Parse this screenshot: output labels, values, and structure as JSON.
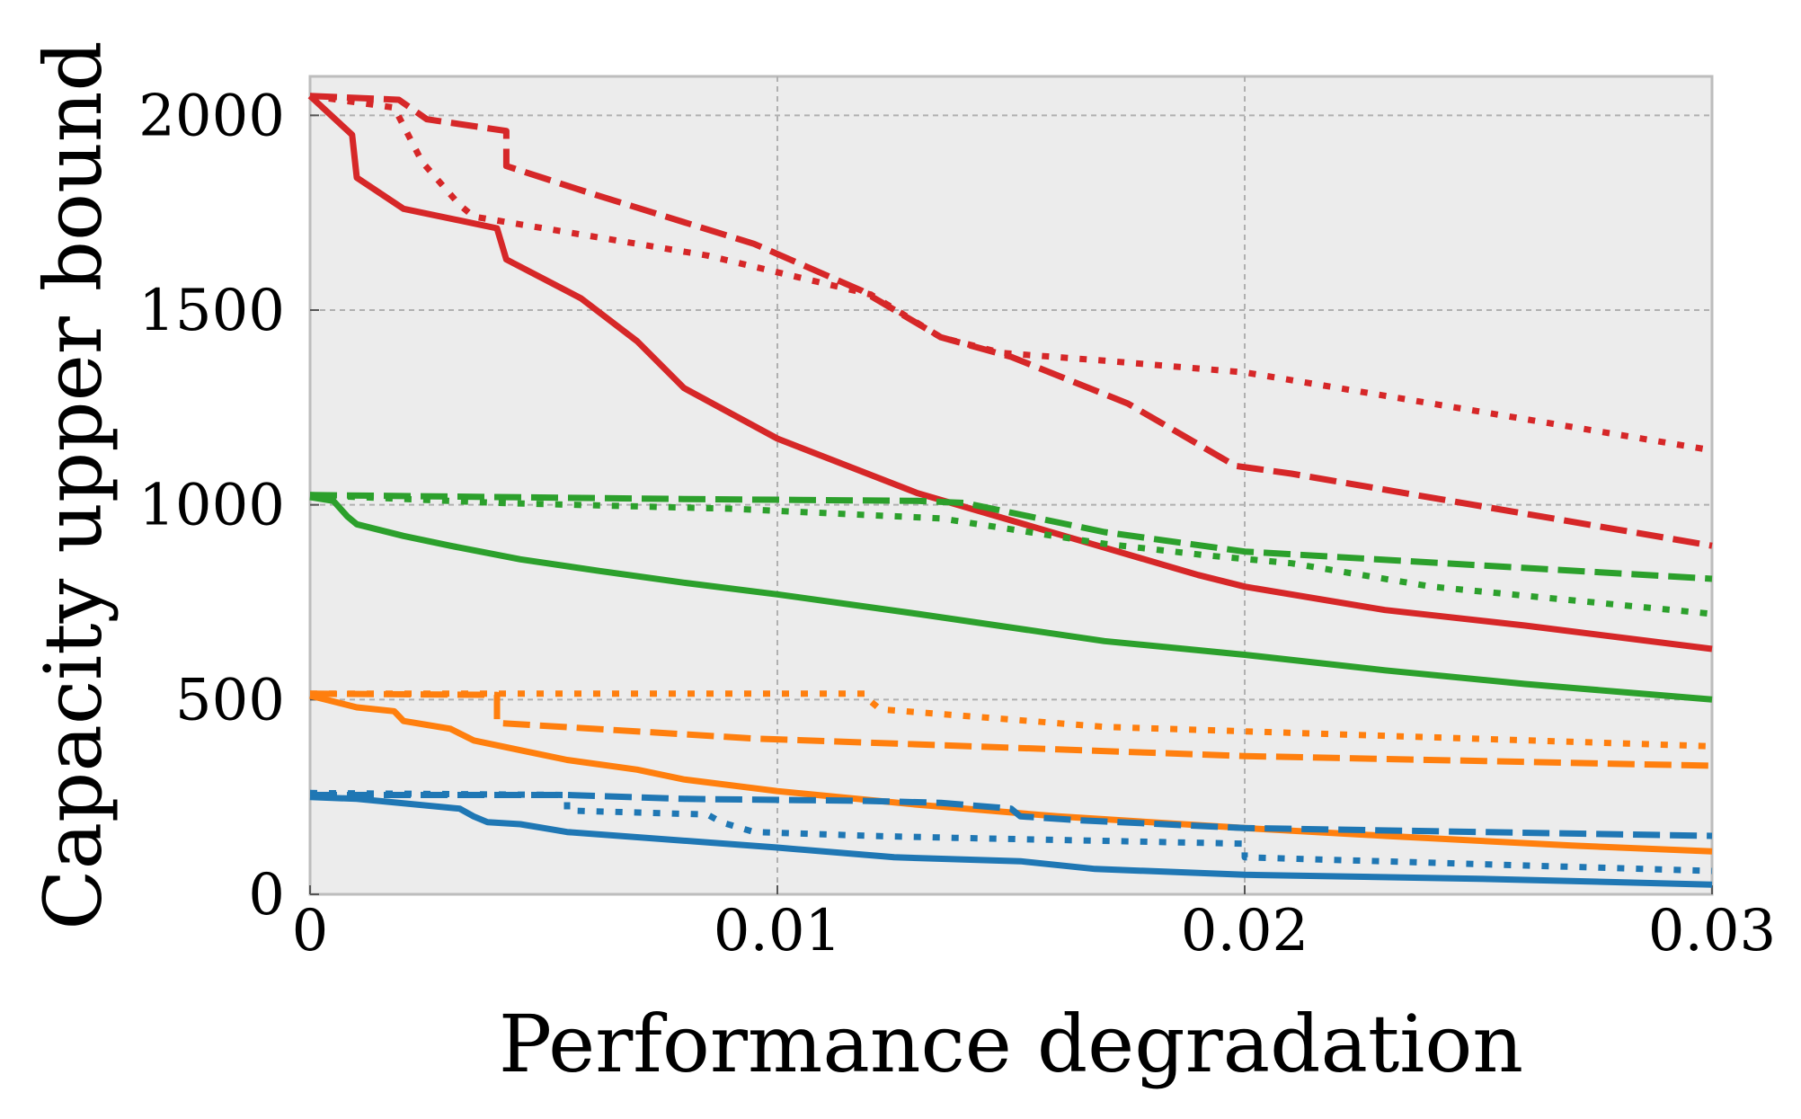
{
  "chart_data": {
    "type": "line",
    "title": "",
    "xlabel": "Performance degradation",
    "ylabel": "Capacity upper bound",
    "xlim": [
      0,
      0.03
    ],
    "ylim": [
      0,
      2100
    ],
    "grid": true,
    "xticks": [
      0,
      0.01,
      0.02,
      0.03
    ],
    "xtick_labels": [
      "0",
      "0.01",
      "0.02",
      "0.03"
    ],
    "yticks": [
      0,
      500,
      1000,
      1500,
      2000
    ],
    "ytick_labels": [
      "0",
      "500",
      "1000",
      "1500",
      "2000"
    ],
    "series": [
      {
        "name": "red-solid",
        "color": "#d62728",
        "style": "solid",
        "x": [
          0,
          0.0009,
          0.001,
          0.002,
          0.004,
          0.0042,
          0.0058,
          0.007,
          0.008,
          0.01,
          0.013,
          0.015,
          0.017,
          0.019,
          0.02,
          0.023,
          0.026,
          0.03
        ],
        "y": [
          2050,
          1950,
          1840,
          1760,
          1710,
          1630,
          1530,
          1420,
          1300,
          1170,
          1030,
          960,
          890,
          820,
          790,
          730,
          690,
          630
        ]
      },
      {
        "name": "red-dashed",
        "color": "#d62728",
        "style": "dashed",
        "x": [
          0,
          0.0019,
          0.0025,
          0.0042,
          0.0042,
          0.006,
          0.0095,
          0.0118,
          0.0135,
          0.015,
          0.0175,
          0.0198,
          0.021,
          0.03
        ],
        "y": [
          2050,
          2040,
          1990,
          1960,
          1870,
          1800,
          1670,
          1550,
          1430,
          1380,
          1260,
          1100,
          1080,
          895
        ]
      },
      {
        "name": "red-dotted",
        "color": "#d62728",
        "style": "dotted",
        "x": [
          0,
          0.0018,
          0.0024,
          0.0032,
          0.0035,
          0.0055,
          0.0085,
          0.012,
          0.0135,
          0.0148,
          0.017,
          0.02,
          0.03
        ],
        "y": [
          2050,
          2020,
          1880,
          1770,
          1740,
          1700,
          1640,
          1540,
          1430,
          1390,
          1370,
          1340,
          1140
        ]
      },
      {
        "name": "green-solid",
        "color": "#2ca02c",
        "style": "solid",
        "x": [
          0,
          0.0005,
          0.0008,
          0.001,
          0.002,
          0.003,
          0.0045,
          0.0062,
          0.008,
          0.01,
          0.013,
          0.017,
          0.02,
          0.023,
          0.026,
          0.03
        ],
        "y": [
          1020,
          1010,
          970,
          950,
          920,
          895,
          860,
          830,
          800,
          770,
          720,
          650,
          615,
          575,
          540,
          500
        ]
      },
      {
        "name": "green-dashed",
        "color": "#2ca02c",
        "style": "dashed",
        "x": [
          0,
          0.004,
          0.008,
          0.013,
          0.014,
          0.017,
          0.02,
          0.03
        ],
        "y": [
          1025,
          1020,
          1015,
          1010,
          1005,
          930,
          880,
          810
        ]
      },
      {
        "name": "green-dotted",
        "color": "#2ca02c",
        "style": "dotted",
        "x": [
          0,
          0.004,
          0.009,
          0.0135,
          0.017,
          0.0192,
          0.021,
          0.024,
          0.03
        ],
        "y": [
          1025,
          1005,
          990,
          965,
          900,
          870,
          850,
          790,
          720
        ]
      },
      {
        "name": "orange-solid",
        "color": "#ff7f0e",
        "style": "solid",
        "x": [
          0,
          0.0005,
          0.001,
          0.0018,
          0.002,
          0.0025,
          0.003,
          0.0035,
          0.0045,
          0.0055,
          0.007,
          0.008,
          0.01,
          0.013,
          0.016,
          0.02,
          0.023,
          0.027,
          0.03
        ],
        "y": [
          510,
          495,
          480,
          470,
          445,
          435,
          425,
          395,
          370,
          345,
          320,
          295,
          265,
          230,
          200,
          170,
          150,
          125,
          110
        ]
      },
      {
        "name": "orange-dashed",
        "color": "#ff7f0e",
        "style": "dashed",
        "x": [
          0,
          0.004,
          0.004,
          0.0095,
          0.02,
          0.03
        ],
        "y": [
          515,
          512,
          440,
          400,
          355,
          330
        ]
      },
      {
        "name": "orange-dotted",
        "color": "#ff7f0e",
        "style": "dotted",
        "x": [
          0,
          0.0119,
          0.012,
          0.0122,
          0.017,
          0.03
        ],
        "y": [
          515,
          515,
          495,
          475,
          430,
          380
        ]
      },
      {
        "name": "blue-solid",
        "color": "#1f77b4",
        "style": "solid",
        "x": [
          0,
          0.001,
          0.0032,
          0.0035,
          0.0038,
          0.0045,
          0.005,
          0.0055,
          0.01,
          0.0125,
          0.0152,
          0.0168,
          0.02,
          0.025,
          0.03
        ],
        "y": [
          250,
          245,
          220,
          200,
          185,
          180,
          170,
          160,
          120,
          95,
          85,
          65,
          50,
          40,
          25
        ]
      },
      {
        "name": "blue-dashed",
        "color": "#1f77b4",
        "style": "dashed",
        "x": [
          0,
          0.0055,
          0.008,
          0.0118,
          0.0135,
          0.015,
          0.0152,
          0.0165,
          0.02,
          0.03
        ],
        "y": [
          255,
          255,
          245,
          240,
          235,
          220,
          200,
          190,
          170,
          150
        ]
      },
      {
        "name": "blue-dotted",
        "color": "#1f77b4",
        "style": "dotted",
        "x": [
          0,
          0.0055,
          0.0055,
          0.0085,
          0.0088,
          0.0095,
          0.012,
          0.0138,
          0.02,
          0.02,
          0.03
        ],
        "y": [
          260,
          255,
          215,
          205,
          185,
          160,
          150,
          145,
          130,
          95,
          60
        ]
      }
    ]
  }
}
